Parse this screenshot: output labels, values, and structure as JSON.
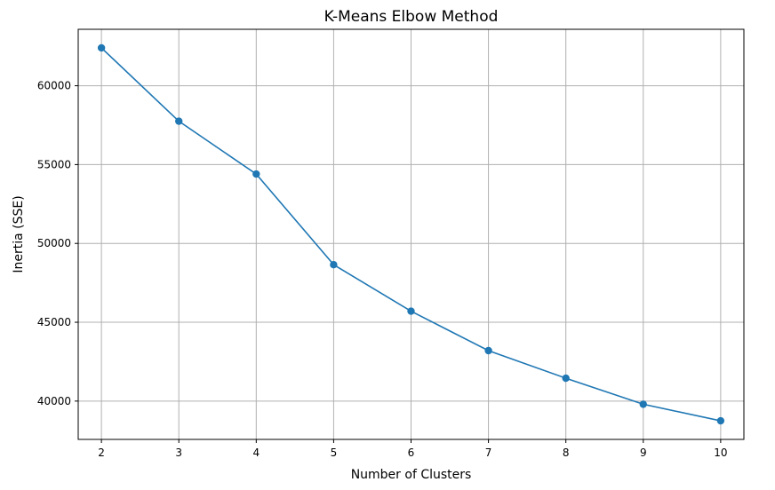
{
  "chart_data": {
    "type": "line",
    "title": "K-Means Elbow Method",
    "xlabel": "Number of Clusters",
    "ylabel": "Inertia (SSE)",
    "x": [
      2,
      3,
      4,
      5,
      6,
      7,
      8,
      9,
      10
    ],
    "series": [
      {
        "values": [
          62400,
          57750,
          54400,
          48650,
          45700,
          43200,
          41450,
          39800,
          38750
        ],
        "color": "#1f77b4",
        "marker": "circle"
      }
    ],
    "xticks": [
      2,
      3,
      4,
      5,
      6,
      7,
      8,
      9,
      10
    ],
    "yticks": [
      40000,
      45000,
      50000,
      55000,
      60000
    ],
    "xlim": [
      1.7,
      10.3
    ],
    "ylim": [
      37570,
      63580
    ],
    "grid": true
  }
}
